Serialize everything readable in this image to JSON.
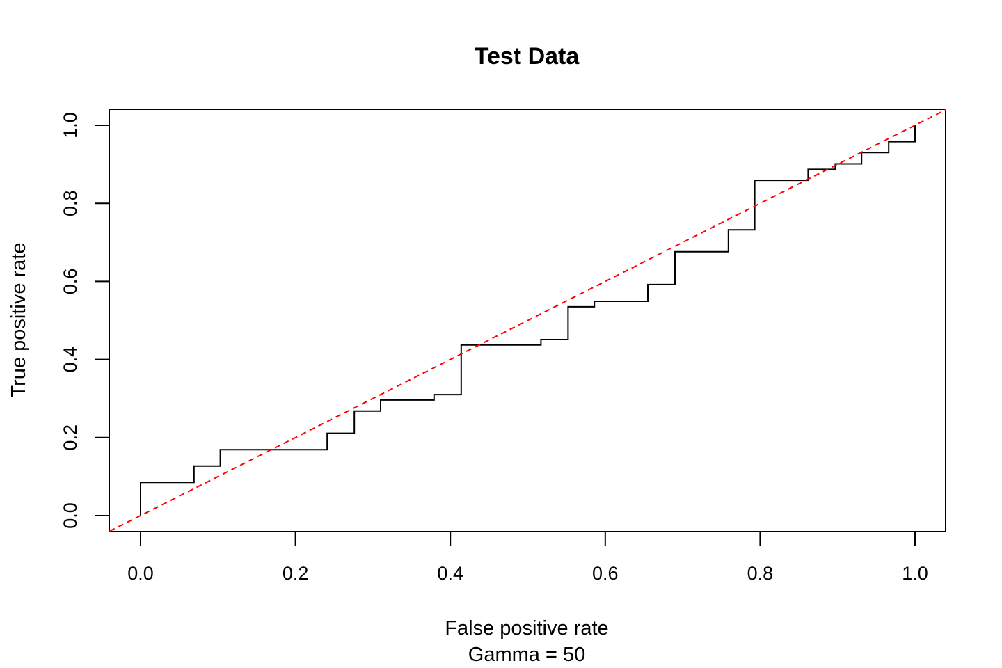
{
  "chart_data": {
    "type": "line",
    "title": "Test Data",
    "xlabel": "False positive rate",
    "xlabel_sub": "Gamma = 50",
    "ylabel": "True positive rate",
    "xlim": [
      0,
      1
    ],
    "ylim": [
      0,
      1
    ],
    "x_ticks": [
      "0.0",
      "0.2",
      "0.4",
      "0.6",
      "0.8",
      "1.0"
    ],
    "y_ticks": [
      "0.0",
      "0.2",
      "0.4",
      "0.6",
      "0.8",
      "1.0"
    ],
    "grid": false,
    "legend": "none",
    "series": [
      {
        "style": "step",
        "color": "#000000",
        "x": [
          0,
          0,
          0.069,
          0.069,
          0.103,
          0.103,
          0.241,
          0.241,
          0.276,
          0.276,
          0.31,
          0.31,
          0.379,
          0.379,
          0.414,
          0.414,
          0.517,
          0.517,
          0.552,
          0.552,
          0.586,
          0.586,
          0.655,
          0.655,
          0.69,
          0.69,
          0.759,
          0.759,
          0.793,
          0.793,
          0.862,
          0.862,
          0.897,
          0.897,
          0.931,
          0.931,
          0.966,
          0.966,
          1.0,
          1.0
        ],
        "y": [
          0,
          0.085,
          0.085,
          0.127,
          0.127,
          0.169,
          0.169,
          0.211,
          0.211,
          0.268,
          0.268,
          0.296,
          0.296,
          0.31,
          0.31,
          0.437,
          0.437,
          0.451,
          0.451,
          0.535,
          0.535,
          0.549,
          0.549,
          0.592,
          0.592,
          0.676,
          0.676,
          0.732,
          0.732,
          0.859,
          0.859,
          0.887,
          0.887,
          0.901,
          0.901,
          0.93,
          0.93,
          0.958,
          0.958,
          1.0
        ]
      },
      {
        "style": "dashed",
        "color": "#ff0000",
        "x": [
          -0.04,
          1.04
        ],
        "y": [
          -0.04,
          1.04
        ]
      }
    ]
  }
}
